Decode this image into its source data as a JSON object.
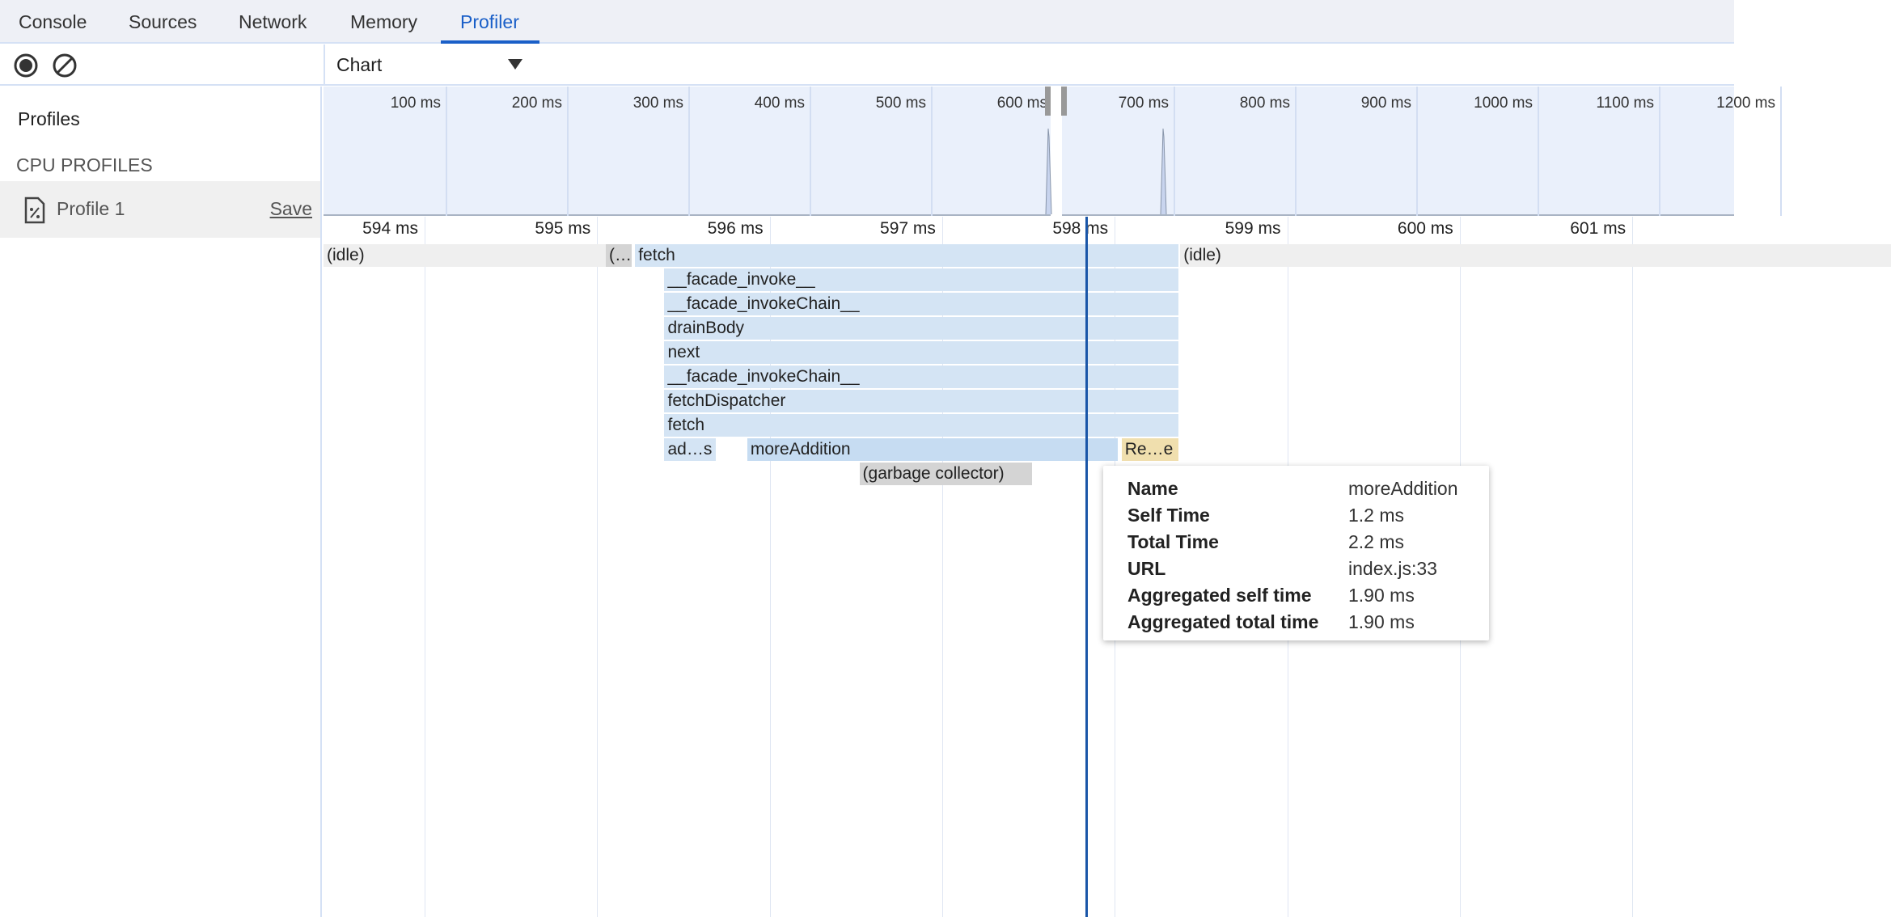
{
  "tabs": [
    {
      "label": "Console"
    },
    {
      "label": "Sources"
    },
    {
      "label": "Network"
    },
    {
      "label": "Memory"
    },
    {
      "label": "Profiler",
      "active": true
    }
  ],
  "toolbar": {
    "record_icon": "record-icon",
    "clear_icon": "clear-icon",
    "view_select": "Chart"
  },
  "sidebar": {
    "profiles_label": "Profiles",
    "section_label": "CPU PROFILES",
    "items": [
      {
        "label": "Profile 1",
        "save_label": "Save",
        "icon": "cpu-profile-file-icon"
      }
    ]
  },
  "overview": {
    "ticks": [
      "100 ms",
      "200 ms",
      "300 ms",
      "400 ms",
      "500 ms",
      "600 ms",
      "700 ms",
      "800 ms",
      "900 ms",
      "1000 ms",
      "1100 ms",
      "1200 ms"
    ]
  },
  "ruler": {
    "ticks": [
      "594 ms",
      "595 ms",
      "596 ms",
      "597 ms",
      "598 ms",
      "599 ms",
      "600 ms",
      "601 ms"
    ],
    "tick_values": [
      594,
      595,
      596,
      597,
      598,
      599,
      600,
      601
    ]
  },
  "cursor_ms": 597.83,
  "colors": {
    "accent": "#1a5fc8",
    "js_frame": "#d4e4f4",
    "selected_frame": "#c6dcf2",
    "idle": "#efefef",
    "gc": "#d4d4d4",
    "native": "#f0dfae",
    "cursor": "#1a56a8"
  },
  "flame": [
    {
      "label": "(idle)",
      "row": 0,
      "start": 593.4,
      "end": 595.05,
      "kind": "idle"
    },
    {
      "label": "(…",
      "row": 0,
      "start": 595.05,
      "end": 595.2,
      "kind": "gc"
    },
    {
      "label": "fetch",
      "row": 0,
      "start": 595.22,
      "end": 598.37,
      "kind": "js"
    },
    {
      "label": "(idle)",
      "row": 0,
      "start": 598.38,
      "end": 602.5,
      "kind": "idle"
    },
    {
      "label": "__facade_invoke__",
      "row": 1,
      "start": 595.39,
      "end": 598.37,
      "kind": "js"
    },
    {
      "label": "__facade_invokeChain__",
      "row": 2,
      "start": 595.39,
      "end": 598.37,
      "kind": "js"
    },
    {
      "label": "drainBody",
      "row": 3,
      "start": 595.39,
      "end": 598.37,
      "kind": "js"
    },
    {
      "label": "next",
      "row": 4,
      "start": 595.39,
      "end": 598.37,
      "kind": "js"
    },
    {
      "label": "__facade_invokeChain__",
      "row": 5,
      "start": 595.39,
      "end": 598.37,
      "kind": "js"
    },
    {
      "label": "fetchDispatcher",
      "row": 6,
      "start": 595.39,
      "end": 598.37,
      "kind": "js"
    },
    {
      "label": "fetch",
      "row": 7,
      "start": 595.39,
      "end": 598.37,
      "kind": "js"
    },
    {
      "label": "ad…s",
      "row": 8,
      "start": 595.39,
      "end": 595.69,
      "kind": "js"
    },
    {
      "label": "moreAddition",
      "row": 8,
      "start": 595.87,
      "end": 598.02,
      "kind": "selected"
    },
    {
      "label": "Re…e",
      "row": 8,
      "start": 598.04,
      "end": 598.37,
      "kind": "native"
    },
    {
      "label": "(garbage collector)",
      "row": 9,
      "start": 596.52,
      "end": 597.52,
      "kind": "gc"
    }
  ],
  "tooltip": {
    "rows": [
      {
        "key": "Name",
        "value": "moreAddition"
      },
      {
        "key": "Self Time",
        "value": "1.2 ms"
      },
      {
        "key": "Total Time",
        "value": "2.2 ms"
      },
      {
        "key": "URL",
        "value": "index.js:33"
      },
      {
        "key": "Aggregated self time",
        "value": "1.90 ms"
      },
      {
        "key": "Aggregated total time",
        "value": "1.90 ms"
      }
    ]
  }
}
